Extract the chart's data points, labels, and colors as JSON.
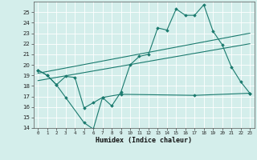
{
  "xlabel": "Humidex (Indice chaleur)",
  "x": [
    0,
    1,
    2,
    3,
    4,
    5,
    6,
    7,
    8,
    9,
    10,
    11,
    12,
    13,
    14,
    15,
    16,
    17,
    18,
    19,
    20,
    21,
    22,
    23
  ],
  "line_main": [
    19.5,
    19.0,
    18.1,
    18.9,
    18.8,
    15.9,
    16.4,
    16.9,
    16.1,
    17.4,
    20.0,
    20.8,
    21.0,
    23.5,
    23.3,
    25.3,
    24.7,
    24.7,
    25.7,
    23.2,
    21.9,
    19.8,
    18.4,
    17.3
  ],
  "line_low_x": [
    0,
    1,
    2,
    3,
    5,
    6,
    7,
    9,
    17,
    23
  ],
  "line_low_y": [
    19.5,
    19.0,
    18.1,
    16.9,
    14.5,
    13.9,
    16.9,
    17.2,
    17.1,
    17.3
  ],
  "trend1_x": [
    0,
    23
  ],
  "trend1_y": [
    18.5,
    22.0
  ],
  "trend2_x": [
    0,
    23
  ],
  "trend2_y": [
    19.2,
    23.0
  ],
  "color": "#1a7a6e",
  "bg_color": "#d4eeeb",
  "ylim": [
    14,
    26
  ],
  "xlim": [
    -0.5,
    23.5
  ],
  "yticks": [
    14,
    15,
    16,
    17,
    18,
    19,
    20,
    21,
    22,
    23,
    24,
    25
  ],
  "xticks": [
    0,
    1,
    2,
    3,
    4,
    5,
    6,
    7,
    8,
    9,
    10,
    11,
    12,
    13,
    14,
    15,
    16,
    17,
    18,
    19,
    20,
    21,
    22,
    23
  ]
}
